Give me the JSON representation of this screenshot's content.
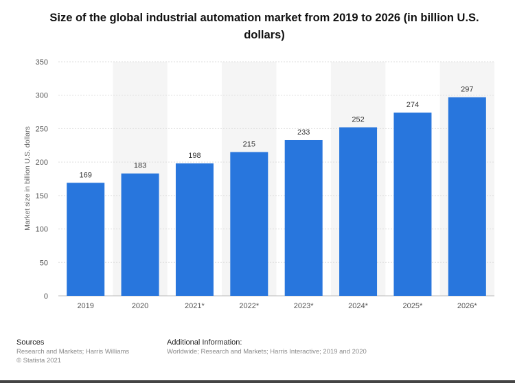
{
  "chart_data": {
    "type": "bar",
    "title": "Size of the global industrial automation market from 2019 to 2026 (in billion U.S. dollars)",
    "categories": [
      "2019",
      "2020",
      "2021*",
      "2022*",
      "2023*",
      "2024*",
      "2025*",
      "2026*"
    ],
    "values": [
      169,
      183,
      198,
      215,
      233,
      252,
      274,
      297
    ],
    "xlabel": "",
    "ylabel": "Market size in billion U.S. dollars",
    "ylim": [
      0,
      350
    ],
    "yticks": [
      0,
      50,
      100,
      150,
      200,
      250,
      300,
      350
    ],
    "grid": true,
    "bar_color": "#2876dd",
    "alternating_column_shading": "#f5f5f5",
    "data_labels": true
  },
  "footer": {
    "sources_heading": "Sources",
    "sources_line": "Research and Markets; Harris Williams",
    "copyright": "© Statista 2021",
    "additional_heading": "Additional Information:",
    "additional_line": "Worldwide; Research and Markets; Harris Interactive; 2019 and 2020"
  }
}
